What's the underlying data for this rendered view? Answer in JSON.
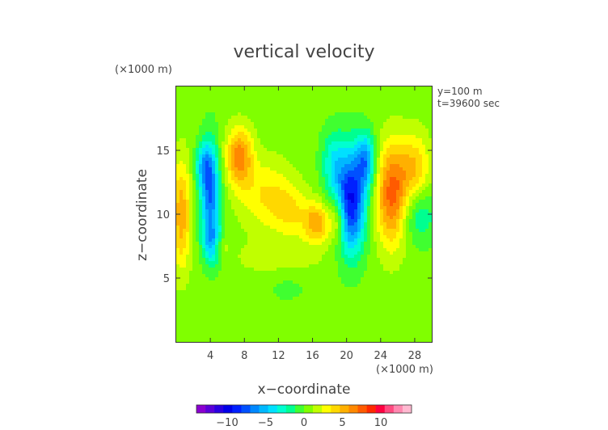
{
  "chart_data": {
    "type": "heatmap",
    "title": "vertical velocity",
    "xlabel": "x−coordinate",
    "ylabel": "z−coordinate",
    "x_unit": "(×1000 m)",
    "y_unit": "(×1000 m)",
    "annotations": [
      "y=100 m",
      "t=39600 sec"
    ],
    "xlim": [
      0,
      30
    ],
    "ylim": [
      0,
      20
    ],
    "x_ticks": [
      4,
      8,
      12,
      16,
      20,
      24,
      28
    ],
    "y_ticks": [
      5,
      10,
      15
    ],
    "x_tick_labels": [
      "4",
      "8",
      "12",
      "16",
      "20",
      "24",
      "28"
    ],
    "y_tick_labels": [
      "5",
      "10",
      "15"
    ],
    "background_value": 0.5,
    "features": [
      {
        "x": 4.0,
        "y": 11.5,
        "sx": 0.8,
        "sy": 2.8,
        "amp": -7.5
      },
      {
        "x": 4.4,
        "y": 7.6,
        "sx": 0.8,
        "sy": 1.0,
        "amp": -5.0
      },
      {
        "x": 3.2,
        "y": 13.8,
        "sx": 0.7,
        "sy": 1.2,
        "amp": -4.0
      },
      {
        "x": 7.4,
        "y": 14.5,
        "sx": 1.1,
        "sy": 1.6,
        "amp": 6.0
      },
      {
        "x": 10.5,
        "y": 11.5,
        "sx": 2.2,
        "sy": 2.0,
        "amp": 3.0
      },
      {
        "x": 13.5,
        "y": 10.2,
        "sx": 1.5,
        "sy": 1.5,
        "amp": 2.5
      },
      {
        "x": 16.5,
        "y": 9.3,
        "sx": 1.1,
        "sy": 1.1,
        "amp": 5.0
      },
      {
        "x": 0.6,
        "y": 10.0,
        "sx": 0.8,
        "sy": 3.0,
        "amp": 5.0
      },
      {
        "x": 5.0,
        "y": 7.5,
        "sx": 0.7,
        "sy": 0.6,
        "amp": 3.5
      },
      {
        "x": 20.5,
        "y": 11.0,
        "sx": 1.2,
        "sy": 2.8,
        "amp": -10.0
      },
      {
        "x": 22.3,
        "y": 14.2,
        "sx": 0.8,
        "sy": 1.5,
        "amp": -6.0
      },
      {
        "x": 18.4,
        "y": 14.0,
        "sx": 1.0,
        "sy": 1.8,
        "amp": -3.5
      },
      {
        "x": 19.0,
        "y": 9.5,
        "sx": 0.7,
        "sy": 1.2,
        "amp": 3.5
      },
      {
        "x": 25.3,
        "y": 11.5,
        "sx": 1.3,
        "sy": 2.8,
        "amp": 7.0
      },
      {
        "x": 28.0,
        "y": 13.5,
        "sx": 1.3,
        "sy": 2.0,
        "amp": 4.0
      },
      {
        "x": 28.5,
        "y": 10.0,
        "sx": 1.5,
        "sy": 1.6,
        "amp": -3.0
      },
      {
        "x": 12.0,
        "y": 6.5,
        "sx": 4.0,
        "sy": 1.0,
        "amp": 1.2
      },
      {
        "x": 13.0,
        "y": 4.3,
        "sx": 2.0,
        "sy": 1.0,
        "amp": -0.8
      }
    ],
    "colorbar": {
      "tick_values": [
        -10,
        -5,
        0,
        5,
        10
      ],
      "tick_labels": [
        "−10",
        "−5",
        "0",
        "5",
        "10"
      ],
      "range": [
        -14,
        14
      ],
      "colors": [
        "#8a00d0",
        "#5a00d8",
        "#2a00e0",
        "#0000e8",
        "#0020ff",
        "#0050ff",
        "#0088ff",
        "#00b8ff",
        "#00e0ff",
        "#00ffd0",
        "#00ff90",
        "#40ff30",
        "#80ff00",
        "#c0ff00",
        "#ffff00",
        "#ffd800",
        "#ffb000",
        "#ff8800",
        "#ff5a00",
        "#ff2800",
        "#ff0040",
        "#ff4a80",
        "#ff88b0",
        "#ffb8d0"
      ]
    }
  }
}
